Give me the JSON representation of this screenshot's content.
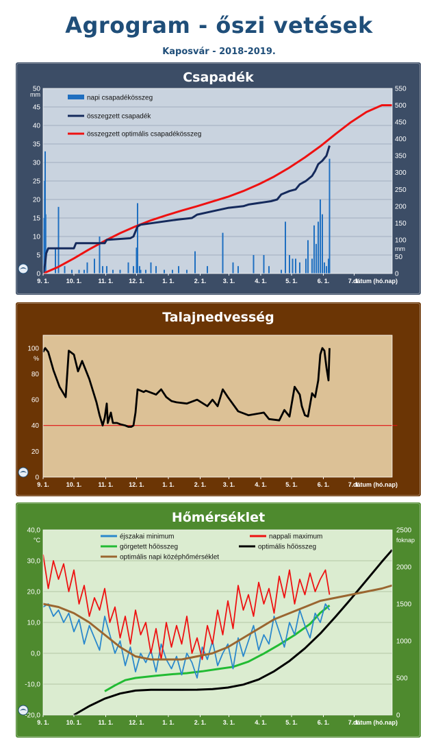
{
  "header": {
    "title": "Agrogram - őszi vetések",
    "subtitle": "Kaposvár  - 2018-2019."
  },
  "date_ticks": [
    "9. 1.",
    "10. 1.",
    "11. 1.",
    "12. 1.",
    "1. 1.",
    "2. 1.",
    "3. 1.",
    "4. 1.",
    "5. 1.",
    "6. 1.",
    "7. 1."
  ],
  "date_axis_label": "dátum (hó.nap)",
  "colors": {
    "precip_bg": "#c9d3df",
    "precip_frame": "#3c4d66",
    "soil_bg": "#dcc196",
    "soil_frame": "#6b3505",
    "temp_bg": "#dbecd0",
    "temp_frame": "#4e8a2e",
    "daily_precip": "#1f6fc0",
    "cum_precip": "#152a5c",
    "opt_precip": "#ee1111",
    "soil_line": "#000000",
    "soil_threshold": "#e01010",
    "t_min": "#2a88cc",
    "t_max": "#ee1111",
    "rolling_heat": "#22bb33",
    "opt_heat": "#000000",
    "opt_daily_mean": "#9a6630"
  },
  "chart_data": [
    {
      "type": "bar",
      "title": "Csapadék",
      "ylabel_left": "mm",
      "ylabel_right": "mm",
      "ylim_left": [
        0,
        50
      ],
      "ylim_right": [
        0,
        550
      ],
      "yticks_left": [
        "0",
        "5",
        "10",
        "15",
        "20",
        "25",
        "30",
        "35",
        "40",
        "45",
        "50"
      ],
      "yticks_right": [
        "0",
        "50",
        "100",
        "150",
        "200",
        "250",
        "300",
        "350",
        "400",
        "450",
        "500",
        "550"
      ],
      "legend_position": "top-left",
      "grid": true,
      "series": [
        {
          "name": "napi csapadékösszeg",
          "type": "bar",
          "axis": "left",
          "x": [
            0.5,
            1,
            1.5,
            2,
            2.5,
            12,
            15,
            21,
            28,
            35,
            40,
            43,
            50,
            55,
            58,
            62,
            68,
            75,
            83,
            88,
            91,
            92,
            94,
            95,
            100,
            105,
            110,
            118,
            126,
            132,
            140,
            148,
            160,
            175,
            185,
            190,
            205,
            215,
            220,
            232,
            236,
            240,
            243,
            246,
            250,
            256,
            258,
            262,
            264,
            266,
            268,
            270,
            272,
            274,
            276,
            278,
            279
          ],
          "values": [
            12,
            15,
            25,
            33,
            16,
            7,
            18,
            2,
            1,
            1,
            1,
            3,
            4,
            10,
            2,
            2,
            1,
            1,
            3,
            2,
            7,
            19,
            2,
            1,
            1,
            3,
            2,
            1,
            1,
            2,
            1,
            6,
            2,
            11,
            3,
            2,
            5,
            5,
            2,
            1,
            14,
            5,
            4,
            4,
            3,
            4,
            9,
            4,
            13,
            8,
            14,
            20,
            16,
            3,
            2,
            4,
            31
          ]
        },
        {
          "name": "összegzett csapadék",
          "type": "line",
          "axis": "right",
          "x": [
            0,
            1,
            2,
            3,
            5,
            30,
            32,
            60,
            62,
            85,
            88,
            92,
            95,
            130,
            145,
            150,
            165,
            180,
            195,
            200,
            222,
            228,
            232,
            240,
            246,
            250,
            256,
            262,
            265,
            268,
            272,
            276,
            279
          ],
          "values": [
            0,
            15,
            30,
            60,
            75,
            75,
            90,
            90,
            100,
            105,
            110,
            140,
            145,
            160,
            165,
            175,
            185,
            195,
            200,
            205,
            215,
            220,
            235,
            245,
            250,
            265,
            275,
            290,
            305,
            325,
            335,
            350,
            380
          ]
        },
        {
          "name": "összegzett optimális csapadékösszeg",
          "type": "line",
          "axis": "right",
          "x": [
            0,
            15,
            30,
            45,
            60,
            75,
            90,
            105,
            120,
            135,
            150,
            165,
            180,
            195,
            210,
            225,
            240,
            255,
            270,
            285,
            300,
            315,
            330,
            340
          ],
          "values": [
            0,
            20,
            45,
            72,
            97,
            120,
            140,
            158,
            173,
            187,
            200,
            214,
            228,
            245,
            265,
            288,
            315,
            345,
            378,
            415,
            450,
            480,
            500,
            500
          ]
        }
      ]
    },
    {
      "type": "line",
      "title": "Talajnedvesség",
      "ylabel": "%",
      "ylim": [
        0,
        110
      ],
      "yticks": [
        "0",
        "20",
        "40",
        "60",
        "80",
        "100"
      ],
      "grid": false,
      "series": [
        {
          "name": "",
          "type": "line",
          "x": [
            0,
            2,
            5,
            10,
            16,
            22,
            25,
            30,
            34,
            38,
            45,
            52,
            55,
            58,
            60,
            62,
            63,
            66,
            68,
            72,
            75,
            80,
            83,
            86,
            88,
            90,
            92,
            95,
            98,
            100,
            110,
            115,
            120,
            125,
            130,
            140,
            150,
            160,
            165,
            170,
            175,
            180,
            190,
            200,
            215,
            220,
            230,
            235,
            240,
            245,
            250,
            252,
            255,
            258,
            262,
            265,
            268,
            270,
            272,
            274,
            276,
            278,
            279
          ],
          "values": [
            97,
            100,
            97,
            83,
            70,
            62,
            98,
            95,
            82,
            90,
            76,
            58,
            48,
            40,
            46,
            57,
            42,
            50,
            42,
            42,
            41,
            40,
            39,
            39,
            40,
            50,
            68,
            67,
            66,
            67,
            64,
            68,
            62,
            59,
            58,
            57,
            60,
            55,
            60,
            55,
            68,
            62,
            51,
            48,
            50,
            45,
            44,
            52,
            47,
            70,
            64,
            55,
            48,
            47,
            65,
            62,
            75,
            95,
            100,
            98,
            85,
            75,
            100
          ]
        },
        {
          "name": "",
          "type": "threshold",
          "x": [
            0,
            345
          ],
          "values": [
            40,
            40
          ]
        }
      ]
    },
    {
      "type": "line",
      "title": "Hőmérséklet",
      "ylabel_left": "°C",
      "ylabel_right": "foknap",
      "ylim_left": [
        -20,
        40
      ],
      "ylim_right": [
        0,
        2500
      ],
      "yticks_left": [
        "-20,0",
        "-10,0",
        "0,0",
        "10,0",
        "20,0",
        "30,0",
        "40,0"
      ],
      "yticks_right": [
        "0",
        "500",
        "1000",
        "1500",
        "2000",
        "2500"
      ],
      "legend_position": "top",
      "grid": true,
      "series": [
        {
          "name": "éjszakai minimum",
          "axis": "left",
          "x": [
            0,
            5,
            10,
            15,
            20,
            25,
            30,
            35,
            40,
            45,
            50,
            55,
            60,
            65,
            70,
            75,
            80,
            85,
            90,
            95,
            100,
            105,
            110,
            115,
            120,
            125,
            130,
            135,
            140,
            145,
            150,
            155,
            160,
            165,
            170,
            175,
            180,
            185,
            190,
            195,
            200,
            205,
            210,
            215,
            220,
            225,
            230,
            235,
            240,
            245,
            250,
            255,
            260,
            265,
            270,
            275,
            279
          ],
          "values": [
            15,
            16,
            12,
            14,
            10,
            13,
            7,
            11,
            3,
            9,
            5,
            1,
            12,
            6,
            0,
            4,
            -4,
            2,
            -6,
            0,
            -3,
            1,
            -6,
            3,
            -2,
            -5,
            -1,
            -7,
            0,
            -3,
            -8,
            2,
            -2,
            4,
            -4,
            0,
            3,
            -5,
            5,
            -1,
            4,
            9,
            1,
            6,
            3,
            12,
            7,
            2,
            10,
            6,
            14,
            9,
            5,
            13,
            10,
            16,
            14
          ]
        },
        {
          "name": "nappali maximum",
          "axis": "left",
          "x": [
            0,
            5,
            10,
            15,
            20,
            25,
            30,
            35,
            40,
            45,
            50,
            55,
            60,
            65,
            70,
            75,
            80,
            85,
            90,
            95,
            100,
            105,
            110,
            115,
            120,
            125,
            130,
            135,
            140,
            145,
            150,
            155,
            160,
            165,
            170,
            175,
            180,
            185,
            190,
            195,
            200,
            205,
            210,
            215,
            220,
            225,
            230,
            235,
            240,
            245,
            250,
            255,
            260,
            265,
            270,
            275,
            279
          ],
          "values": [
            32,
            21,
            30,
            24,
            29,
            20,
            27,
            16,
            22,
            12,
            18,
            14,
            21,
            10,
            15,
            5,
            12,
            3,
            14,
            6,
            10,
            0,
            8,
            -2,
            10,
            2,
            9,
            3,
            12,
            0,
            5,
            -2,
            9,
            3,
            14,
            6,
            17,
            8,
            22,
            14,
            19,
            12,
            23,
            16,
            21,
            13,
            25,
            18,
            27,
            16,
            24,
            19,
            26,
            20,
            24,
            27,
            19
          ]
        },
        {
          "name": "görgetett hőösszeg",
          "axis": "right",
          "x": [
            60,
            70,
            80,
            90,
            100,
            110,
            125,
            140,
            155,
            170,
            185,
            200,
            215,
            230,
            245,
            260,
            270,
            279
          ],
          "values": [
            320,
            400,
            470,
            500,
            515,
            530,
            550,
            565,
            590,
            620,
            650,
            720,
            830,
            950,
            1080,
            1230,
            1380,
            1480
          ]
        },
        {
          "name": "optimális hőösszeg",
          "axis": "right",
          "x": [
            30,
            45,
            60,
            75,
            90,
            105,
            120,
            135,
            150,
            165,
            180,
            195,
            210,
            225,
            240,
            255,
            270,
            285,
            300,
            315,
            330,
            340
          ],
          "values": [
            0,
            120,
            220,
            290,
            330,
            340,
            340,
            340,
            342,
            350,
            370,
            410,
            480,
            590,
            730,
            900,
            1100,
            1330,
            1570,
            1820,
            2070,
            2230
          ]
        },
        {
          "name": "optimális napi középhőmérséklet",
          "axis": "left",
          "x": [
            0,
            15,
            30,
            45,
            60,
            75,
            90,
            105,
            120,
            135,
            150,
            165,
            180,
            195,
            210,
            225,
            240,
            255,
            270,
            285,
            300,
            315,
            330,
            340
          ],
          "values": [
            16,
            15,
            13,
            10,
            6,
            2,
            -1,
            -2,
            -2,
            -2,
            -1,
            0,
            2,
            5,
            8,
            11,
            13,
            15,
            17,
            18,
            19,
            20,
            21,
            22
          ]
        }
      ]
    }
  ]
}
